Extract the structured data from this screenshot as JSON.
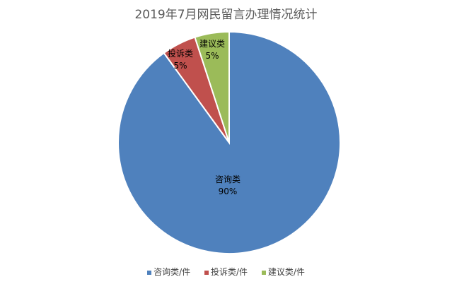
{
  "chart_data": {
    "type": "pie",
    "title": "2019年7月网民留言办理情况统计",
    "categories": [
      "咨询类/件",
      "投诉类/件",
      "建议类/件"
    ],
    "values": [
      90,
      5,
      5
    ],
    "unit": "%",
    "colors": [
      "#4F81BD",
      "#C0504D",
      "#9BBB59"
    ],
    "data_labels": [
      {
        "name": "咨询类",
        "value": "90%"
      },
      {
        "name": "投诉类",
        "value": "5%"
      },
      {
        "name": "建议类",
        "value": "5%"
      }
    ],
    "start_angle": "12 o'clock",
    "direction": "clockwise",
    "legend_position": "bottom"
  },
  "legend": {
    "items": [
      {
        "label": "咨询类/件",
        "color": "#4F81BD"
      },
      {
        "label": "投诉类/件",
        "color": "#C0504D"
      },
      {
        "label": "建议类/件",
        "color": "#9BBB59"
      }
    ]
  }
}
